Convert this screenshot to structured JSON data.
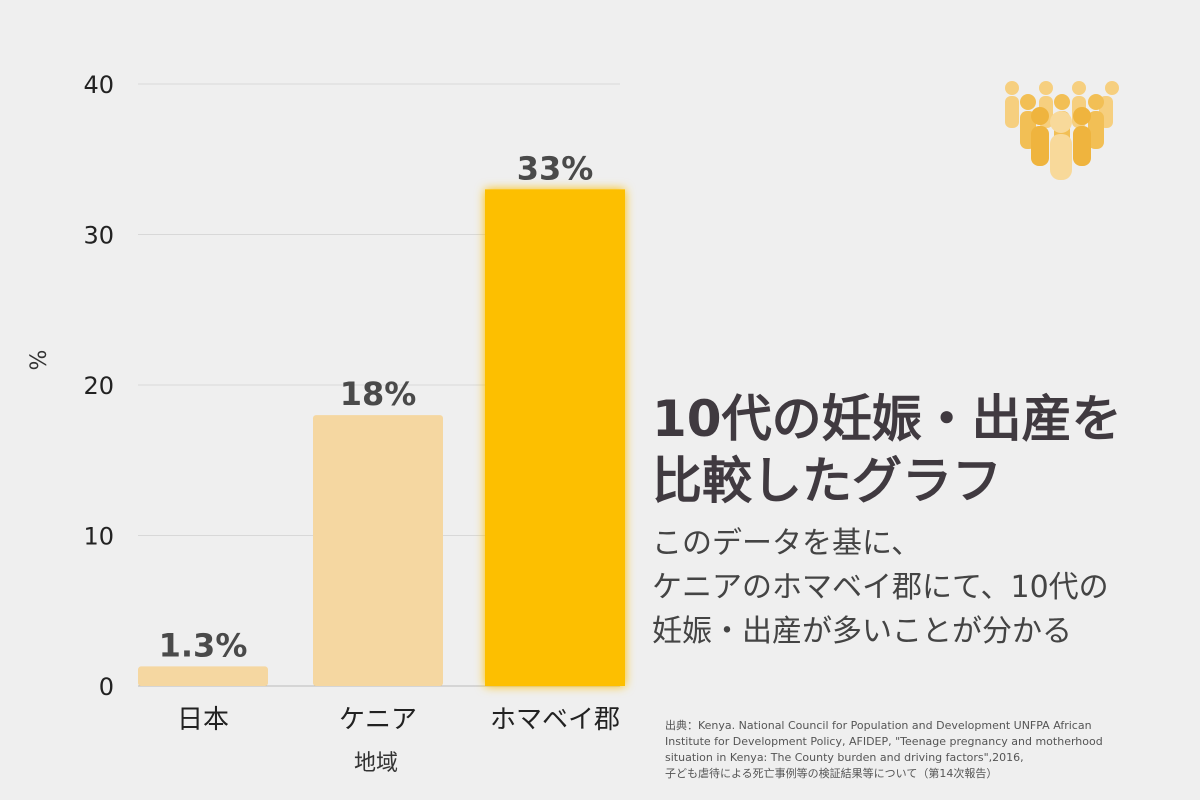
{
  "chart_data": {
    "type": "bar",
    "categories": [
      "日本",
      "ケニア",
      "ホマベイ郡"
    ],
    "values": [
      1.3,
      18,
      33
    ],
    "data_labels": [
      "1.3%",
      "18%",
      "33%"
    ],
    "highlighted_category": "ホマベイ郡",
    "xlabel": "地域",
    "ylabel": "%",
    "ylim": [
      0,
      40
    ],
    "yticks": [
      0,
      10,
      20,
      30,
      40
    ],
    "grid": true,
    "colors": {
      "default": "#f5d7a1",
      "highlight": "#fdbf00",
      "grid": "#d8d8d8"
    }
  },
  "title": "10代の妊娠・出産を\n比較したグラフ",
  "subtitle": "このデータを基に、\nケニアのホマベイ郡にて、10代の\n妊娠・出産が多いことが分かる",
  "source": "出典：Kenya. National Council for Population and Development UNFPA African Institute for Development Policy, AFIDEP, \"Teenage pregnancy and motherhood situation in Kenya: The County burden and driving factors\",2016,\n子ども虐待による死亡事例等の検証結果等について（第14次報告）",
  "icon": "people-group-icon"
}
